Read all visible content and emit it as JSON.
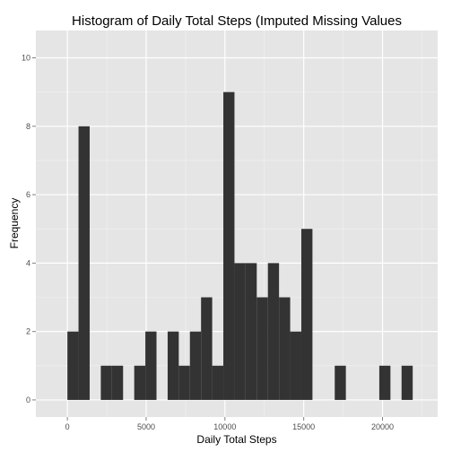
{
  "chart_data": {
    "type": "bar",
    "title": "Histogram of Daily Total Steps (Imputed Missing Values",
    "xlabel": "Daily Total Steps",
    "ylabel": "Frequency",
    "xlim": [
      -2000,
      23500
    ],
    "ylim": [
      -0.5,
      10.8
    ],
    "x_ticks": [
      0,
      5000,
      10000,
      15000,
      20000
    ],
    "x_tick_labels": [
      "0",
      "5000",
      "10000",
      "15000",
      "20000"
    ],
    "y_ticks": [
      0,
      2,
      4,
      6,
      8,
      10
    ],
    "y_tick_labels": [
      "0",
      "2",
      "4",
      "6",
      "8",
      "10"
    ],
    "grid": true,
    "colors": {
      "panel": "#e5e5e5",
      "grid_major": "#ffffff",
      "grid_minor": "#f2f2f2",
      "bar": "#333333"
    },
    "bins": [
      {
        "x0": 0,
        "x1": 707,
        "count": 2
      },
      {
        "x0": 707,
        "x1": 1414,
        "count": 8
      },
      {
        "x0": 2121,
        "x1": 2828,
        "count": 1
      },
      {
        "x0": 2828,
        "x1": 3535,
        "count": 1
      },
      {
        "x0": 4242,
        "x1": 4949,
        "count": 1
      },
      {
        "x0": 4949,
        "x1": 5656,
        "count": 2
      },
      {
        "x0": 6363,
        "x1": 7070,
        "count": 2
      },
      {
        "x0": 7070,
        "x1": 7777,
        "count": 1
      },
      {
        "x0": 7777,
        "x1": 8484,
        "count": 2
      },
      {
        "x0": 8484,
        "x1": 9191,
        "count": 3
      },
      {
        "x0": 9191,
        "x1": 9898,
        "count": 1
      },
      {
        "x0": 9898,
        "x1": 10605,
        "count": 9
      },
      {
        "x0": 10605,
        "x1": 11312,
        "count": 4
      },
      {
        "x0": 11312,
        "x1": 12019,
        "count": 4
      },
      {
        "x0": 12019,
        "x1": 12726,
        "count": 3
      },
      {
        "x0": 12726,
        "x1": 13433,
        "count": 4
      },
      {
        "x0": 13433,
        "x1": 14140,
        "count": 3
      },
      {
        "x0": 14140,
        "x1": 14847,
        "count": 2
      },
      {
        "x0": 14847,
        "x1": 15554,
        "count": 5
      },
      {
        "x0": 16968,
        "x1": 17675,
        "count": 1
      },
      {
        "x0": 19796,
        "x1": 20503,
        "count": 1
      },
      {
        "x0": 20503,
        "x1": 21210,
        "count": 0
      },
      {
        "x0": 21210,
        "x1": 21917,
        "count": 1
      }
    ]
  }
}
